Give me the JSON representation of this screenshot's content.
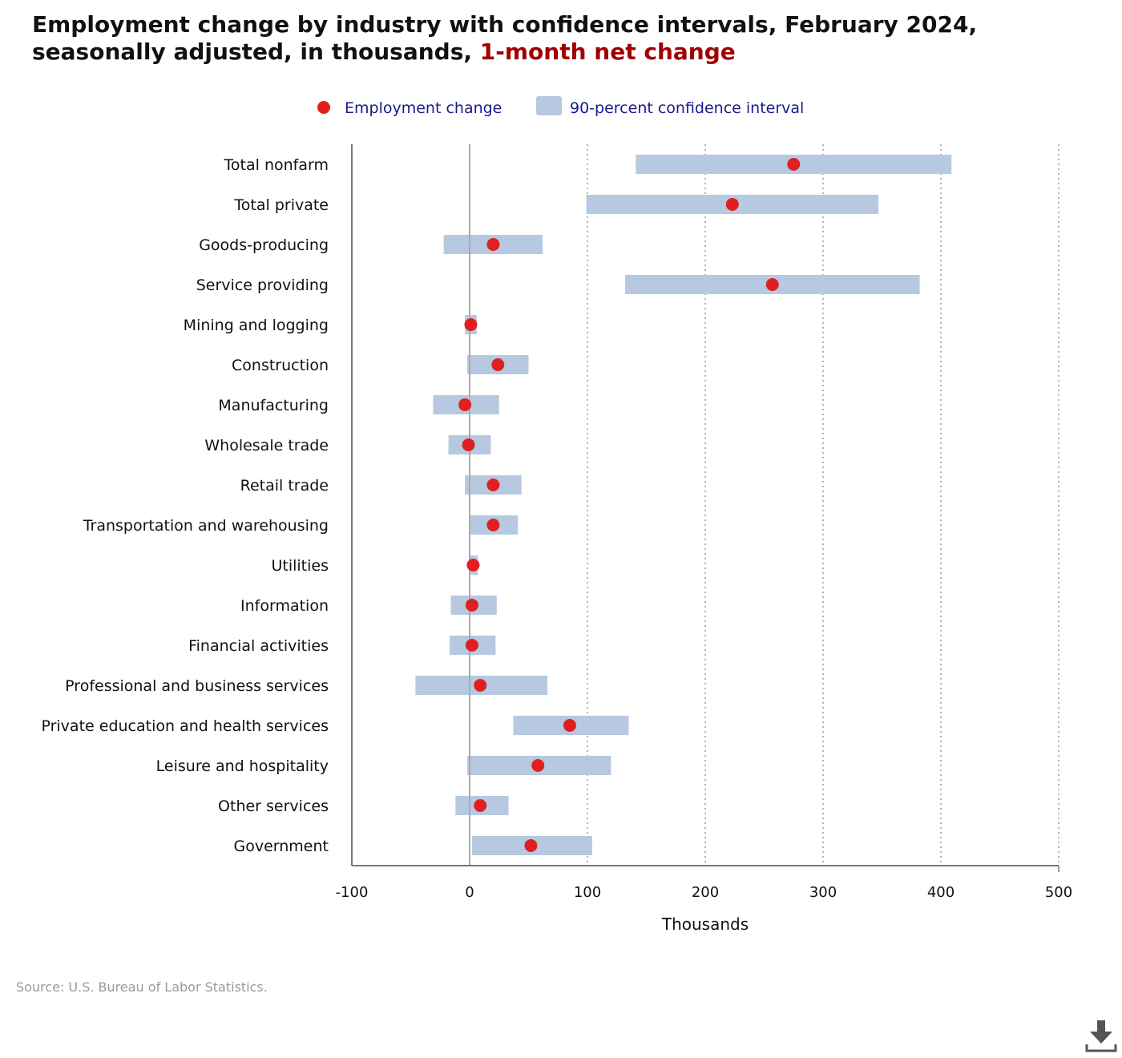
{
  "title": {
    "main": "Employment change by industry with confidence intervals, February 2024, seasonally adjusted, in thousands, ",
    "highlight": "1-month net change"
  },
  "legend": {
    "point_label": "Employment change",
    "interval_label": "90-percent confidence interval"
  },
  "source": "Source: U.S. Bureau of Labor Statistics.",
  "colors": {
    "point": "#e02020",
    "interval": "#b7c9e0",
    "legend_text": "#1a1a8c",
    "highlight": "#a00000"
  },
  "icons": {
    "download": "download-icon"
  },
  "chart_data": {
    "type": "dot-interval",
    "xlabel": "Thousands",
    "xlim": [
      -100,
      500
    ],
    "xticks": [
      "-100",
      "0",
      "100",
      "200",
      "300",
      "400",
      "500"
    ],
    "grid": "vertical dotted",
    "legend_position": "top-center",
    "series": [
      {
        "category": "Total nonfarm",
        "value": 275,
        "low": 141,
        "high": 409
      },
      {
        "category": "Total private",
        "value": 223,
        "low": 99,
        "high": 347
      },
      {
        "category": "Goods-producing",
        "value": 20,
        "low": -22,
        "high": 62
      },
      {
        "category": "Service providing",
        "value": 257,
        "low": 132,
        "high": 382
      },
      {
        "category": "Mining and logging",
        "value": 1,
        "low": -4,
        "high": 6
      },
      {
        "category": "Construction",
        "value": 24,
        "low": -2,
        "high": 50
      },
      {
        "category": "Manufacturing",
        "value": -4,
        "low": -31,
        "high": 25
      },
      {
        "category": "Wholesale trade",
        "value": -1,
        "low": -18,
        "high": 18
      },
      {
        "category": "Retail trade",
        "value": 20,
        "low": -4,
        "high": 44
      },
      {
        "category": "Transportation and warehousing",
        "value": 20,
        "low": 0,
        "high": 41
      },
      {
        "category": "Utilities",
        "value": 3,
        "low": 0,
        "high": 7
      },
      {
        "category": "Information",
        "value": 2,
        "low": -16,
        "high": 23
      },
      {
        "category": "Financial activities",
        "value": 2,
        "low": -17,
        "high": 22
      },
      {
        "category": "Professional and business services",
        "value": 9,
        "low": -46,
        "high": 66
      },
      {
        "category": "Private education and health services",
        "value": 85,
        "low": 37,
        "high": 135
      },
      {
        "category": "Leisure and hospitality",
        "value": 58,
        "low": -2,
        "high": 120
      },
      {
        "category": "Other services",
        "value": 9,
        "low": -12,
        "high": 33
      },
      {
        "category": "Government",
        "value": 52,
        "low": 2,
        "high": 104
      }
    ]
  }
}
